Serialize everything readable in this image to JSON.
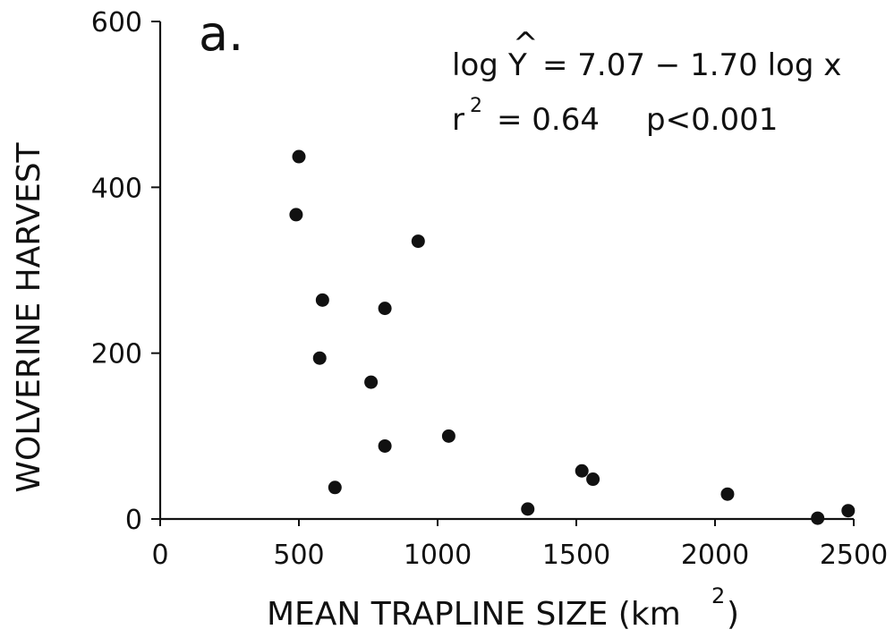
{
  "chart_data": {
    "type": "scatter",
    "panel_label": "a.",
    "xlabel": "MEAN TRAPLINE SIZE (km",
    "xlabel_sup": "2",
    "xlabel_close": ")",
    "ylabel": "WOLVERINE HARVEST",
    "xlim": [
      0,
      2500
    ],
    "ylim": [
      0,
      600
    ],
    "xticks": [
      0,
      500,
      1000,
      1500,
      2000,
      2500
    ],
    "yticks": [
      0,
      200,
      400,
      600
    ],
    "grid": false,
    "annotations": {
      "equation_prefix": "log",
      "equation_var": "Y",
      "equation_hat": "^",
      "equation_rest": "= 7.07 − 1.70 log x",
      "r_label": "r",
      "r_sup": "2",
      "r_value": "= 0.64",
      "p_value": "p<0.001"
    },
    "points": [
      {
        "x": 500,
        "y": 437
      },
      {
        "x": 490,
        "y": 367
      },
      {
        "x": 930,
        "y": 335
      },
      {
        "x": 585,
        "y": 264
      },
      {
        "x": 810,
        "y": 254
      },
      {
        "x": 575,
        "y": 194
      },
      {
        "x": 760,
        "y": 165
      },
      {
        "x": 1040,
        "y": 100
      },
      {
        "x": 810,
        "y": 88
      },
      {
        "x": 630,
        "y": 38
      },
      {
        "x": 1520,
        "y": 58
      },
      {
        "x": 1560,
        "y": 48
      },
      {
        "x": 2045,
        "y": 30
      },
      {
        "x": 1325,
        "y": 12
      },
      {
        "x": 2370,
        "y": 1
      },
      {
        "x": 2480,
        "y": 10
      }
    ],
    "marker_color": "#111111"
  }
}
